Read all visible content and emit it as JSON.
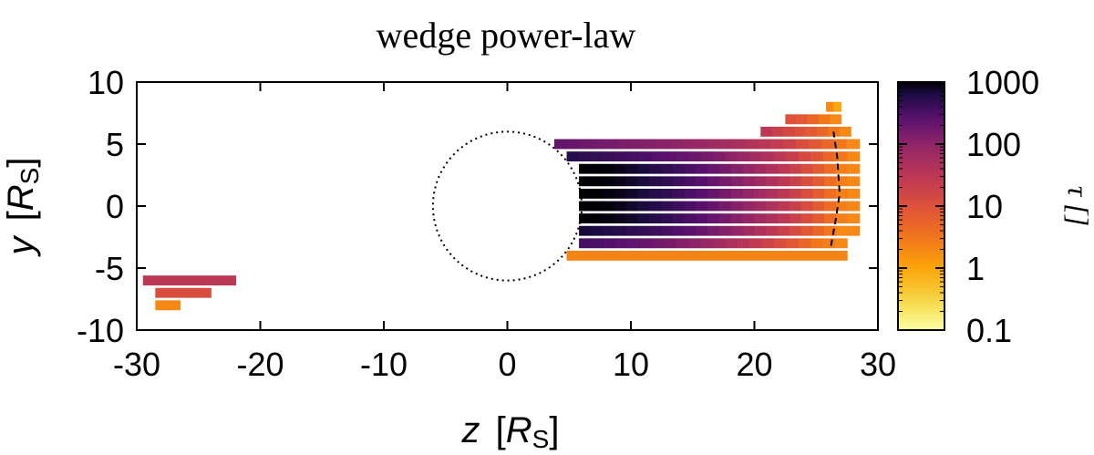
{
  "chart_data": {
    "type": "heatmap",
    "title": "wedge power-law",
    "xlabel": {
      "var": "z",
      "unit_open": "[",
      "unit_sym": "R",
      "unit_sub": "S",
      "unit_close": "]"
    },
    "ylabel": {
      "var": "y",
      "unit_open": "[",
      "unit_sym": "R",
      "unit_sub": "S",
      "unit_close": "]"
    },
    "xlim": [
      -30,
      30
    ],
    "ylim": [
      -10,
      10
    ],
    "xticks": [
      -30,
      -20,
      -10,
      0,
      10,
      20,
      30
    ],
    "yticks": [
      -10,
      -5,
      0,
      5,
      10
    ],
    "colorbar": {
      "label": "τ []",
      "scale": "log",
      "range": [
        0.1,
        1000
      ],
      "ticks": [
        "0.1",
        "1",
        "10",
        "100",
        "1000"
      ],
      "tick_values": [
        0.1,
        1,
        10,
        100,
        1000
      ]
    },
    "circle": {
      "center": [
        0,
        0
      ],
      "radius": 6,
      "style": "dotted"
    },
    "front_curve": {
      "style": "dashed",
      "points": [
        [
          26.2,
          -3.2
        ],
        [
          26.6,
          -1
        ],
        [
          26.9,
          1
        ],
        [
          26.7,
          4
        ],
        [
          26.4,
          6
        ]
      ]
    },
    "strips": [
      {
        "y": 8,
        "z0": 25.8,
        "z1": 27,
        "segments": [
          2,
          1
        ]
      },
      {
        "y": 7,
        "z0": 22.5,
        "z1": 27,
        "segments": [
          10,
          8,
          5,
          3,
          2
        ]
      },
      {
        "y": 6,
        "z0": 20.5,
        "z1": 27.8,
        "segments": [
          30,
          20,
          14,
          10,
          7,
          5,
          3,
          2
        ]
      },
      {
        "y": 5,
        "z0": 3.8,
        "z1": 28.5,
        "segments": [
          220,
          200,
          185,
          170,
          160,
          145,
          130,
          120,
          110,
          100,
          90,
          80,
          70,
          60,
          50,
          40,
          32,
          25,
          18,
          12,
          8,
          5,
          3,
          2
        ]
      },
      {
        "y": 4,
        "z0": 4.8,
        "z1": 28.5,
        "segments": [
          550,
          500,
          460,
          420,
          380,
          350,
          320,
          280,
          250,
          220,
          190,
          160,
          130,
          100,
          80,
          60,
          45,
          32,
          22,
          14,
          9,
          5,
          3,
          2
        ]
      },
      {
        "y": 3,
        "z0": 5.8,
        "z1": 28.5,
        "segments": [
          1000,
          1000,
          950,
          850,
          750,
          650,
          560,
          480,
          400,
          330,
          270,
          210,
          160,
          120,
          90,
          65,
          45,
          30,
          20,
          12,
          7,
          4,
          2.5,
          2
        ]
      },
      {
        "y": 2,
        "z0": 5.8,
        "z1": 28.5,
        "segments": [
          1000,
          1000,
          950,
          850,
          750,
          650,
          560,
          480,
          400,
          330,
          270,
          210,
          160,
          120,
          90,
          65,
          45,
          30,
          20,
          12,
          7,
          4,
          2.5,
          2
        ]
      },
      {
        "y": 1,
        "z0": 5.8,
        "z1": 28.5,
        "segments": [
          1000,
          1000,
          950,
          850,
          750,
          650,
          560,
          480,
          400,
          330,
          270,
          210,
          160,
          120,
          90,
          65,
          45,
          30,
          20,
          12,
          7,
          4,
          2.5,
          2
        ]
      },
      {
        "y": 0,
        "z0": 5.8,
        "z1": 28.5,
        "segments": [
          1000,
          1000,
          950,
          850,
          750,
          650,
          560,
          480,
          400,
          330,
          270,
          210,
          160,
          120,
          90,
          65,
          45,
          30,
          20,
          12,
          7,
          4,
          2.5,
          2
        ]
      },
      {
        "y": -1,
        "z0": 5.8,
        "z1": 28.5,
        "segments": [
          1000,
          1000,
          950,
          850,
          750,
          650,
          560,
          480,
          400,
          330,
          270,
          210,
          160,
          120,
          90,
          65,
          45,
          30,
          20,
          12,
          7,
          4,
          2.5,
          2
        ]
      },
      {
        "y": -2,
        "z0": 5.8,
        "z1": 28.5,
        "segments": [
          700,
          650,
          600,
          550,
          500,
          450,
          400,
          350,
          300,
          250,
          200,
          160,
          120,
          90,
          65,
          45,
          30,
          20,
          13,
          8,
          5,
          3,
          2,
          2
        ]
      },
      {
        "y": -3,
        "z0": 5.8,
        "z1": 27.5,
        "segments": [
          350,
          320,
          290,
          260,
          230,
          200,
          175,
          150,
          125,
          100,
          80,
          62,
          48,
          36,
          26,
          18,
          12,
          8,
          5,
          3,
          2.5,
          2
        ]
      },
      {
        "y": -4,
        "z0": 4.8,
        "z1": 27.5,
        "segments": [
          2.2
        ]
      },
      {
        "y": -6,
        "z0": -29.5,
        "z1": -22,
        "segments": [
          30
        ]
      },
      {
        "y": -7,
        "z0": -28.5,
        "z1": -24,
        "segments": [
          12
        ]
      },
      {
        "y": -8,
        "z0": -28.5,
        "z1": -26.5,
        "segments": [
          2
        ]
      }
    ]
  }
}
